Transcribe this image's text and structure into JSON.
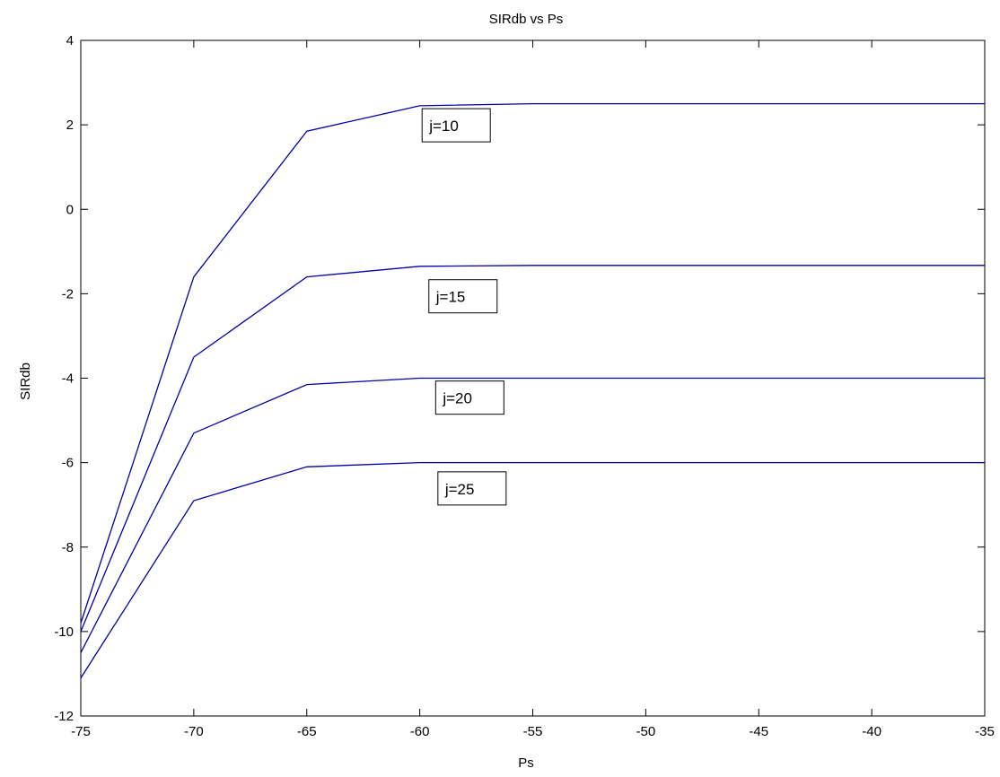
{
  "chart_data": {
    "type": "line",
    "title": "SIRdb vs Ps",
    "xlabel": "Ps",
    "ylabel": "SIRdb",
    "xlim": [
      -75,
      -35
    ],
    "ylim": [
      -12,
      4
    ],
    "xticks": [
      -75,
      -70,
      -65,
      -60,
      -55,
      -50,
      -45,
      -40,
      -35
    ],
    "yticks": [
      -12,
      -10,
      -8,
      -6,
      -4,
      -2,
      0,
      2,
      4
    ],
    "grid": false,
    "line_color": "#0000aa",
    "x": [
      -75,
      -70,
      -65,
      -60,
      -55,
      -50,
      -45,
      -40,
      -35
    ],
    "series": [
      {
        "name": "j=10",
        "values": [
          -9.8,
          -1.6,
          1.85,
          2.45,
          2.5,
          2.5,
          2.5,
          2.5,
          2.5
        ]
      },
      {
        "name": "j=15",
        "values": [
          -10.0,
          -3.5,
          -1.6,
          -1.35,
          -1.33,
          -1.33,
          -1.33,
          -1.33,
          -1.33
        ]
      },
      {
        "name": "j=20",
        "values": [
          -10.5,
          -5.3,
          -4.15,
          -4.0,
          -4.0,
          -4.0,
          -4.0,
          -4.0,
          -4.0
        ]
      },
      {
        "name": "j=25",
        "values": [
          -11.1,
          -6.9,
          -6.1,
          -6.0,
          -6.0,
          -6.0,
          -6.0,
          -6.0,
          -6.0
        ]
      }
    ],
    "annotations": [
      {
        "text": "j=10",
        "x": -59.5,
        "y": 2.0
      },
      {
        "text": "j=15",
        "x": -59.2,
        "y": -2.05
      },
      {
        "text": "j=20",
        "x": -58.9,
        "y": -4.45
      },
      {
        "text": "j=25",
        "x": -58.8,
        "y": -6.6
      }
    ]
  }
}
